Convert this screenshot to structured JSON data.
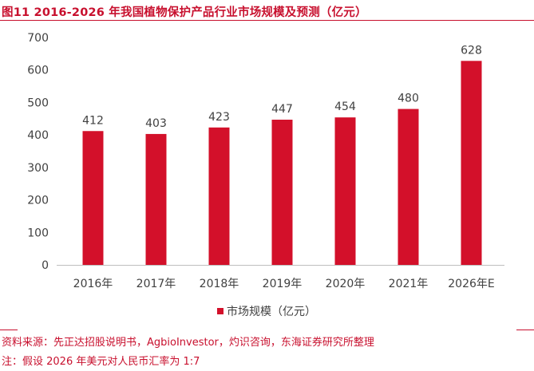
{
  "title": "图11  2016-2026 年我国植物保护产品行业市场规模及预测（亿元）",
  "source": "资料来源：先正达招股说明书，AgbioInvestor，灼识咨询，东海证券研究所整理",
  "note": "注：假设 2026 年美元对人民币汇率为 1:7",
  "colors": {
    "bar": "#d3102a",
    "accent": "#c8102e",
    "axis": "#bfbfbf"
  },
  "chart_data": {
    "type": "bar",
    "title": "2016-2026 年我国植物保护产品行业市场规模及预测（亿元）",
    "categories": [
      "2016年",
      "2017年",
      "2018年",
      "2019年",
      "2020年",
      "2021年",
      "2026年E"
    ],
    "series": [
      {
        "name": "市场规模（亿元）",
        "values": [
          412,
          403,
          423,
          447,
          454,
          480,
          628
        ]
      }
    ],
    "ylim": [
      0,
      700
    ],
    "yticks": [
      0,
      100,
      200,
      300,
      400,
      500,
      600,
      700
    ],
    "xlabel": "",
    "ylabel": "",
    "grid": false,
    "legend_position": "bottom-center"
  }
}
